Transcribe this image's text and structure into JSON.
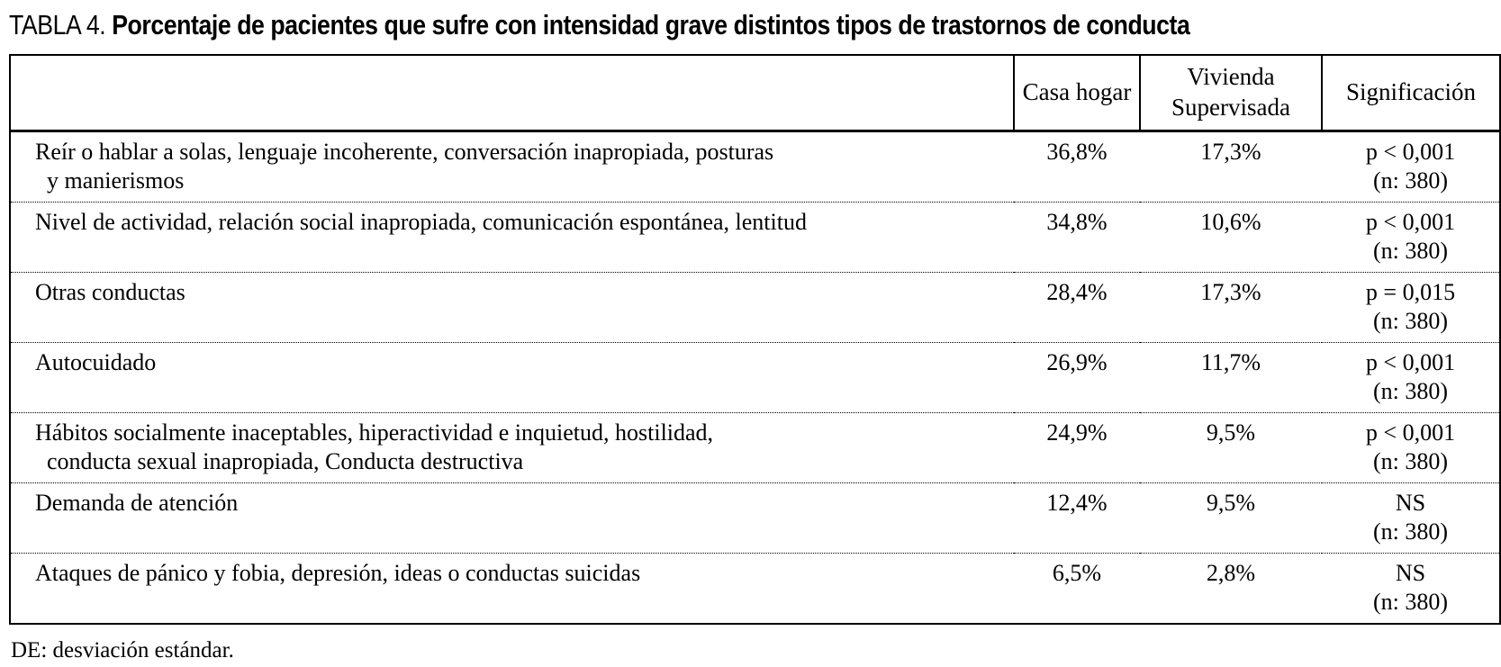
{
  "title": {
    "prefix": "TABLA 4.",
    "text": "Porcentaje de pacientes que sufre con intensidad grave distintos tipos de trastornos de conducta"
  },
  "table": {
    "header": {
      "col1": "Casa hogar",
      "col2": "Vivienda Supervisada",
      "col3": "Significación"
    },
    "rows": [
      {
        "label": "Reír o hablar a solas, lenguaje incoherente, conversación inapropiada, posturas\ny manierismos",
        "casa_hogar": "36,8%",
        "vivienda_supervisada": "17,3%",
        "significacion": "p < 0,001",
        "n": "(n: 380)"
      },
      {
        "label": "Nivel de actividad, relación social inapropiada, comunicación espontánea, lentitud",
        "casa_hogar": "34,8%",
        "vivienda_supervisada": "10,6%",
        "significacion": "p < 0,001",
        "n": "(n: 380)"
      },
      {
        "label": "Otras conductas",
        "casa_hogar": "28,4%",
        "vivienda_supervisada": "17,3%",
        "significacion": "p = 0,015",
        "n": "(n: 380)"
      },
      {
        "label": "Autocuidado",
        "casa_hogar": "26,9%",
        "vivienda_supervisada": "11,7%",
        "significacion": "p < 0,001",
        "n": "(n: 380)"
      },
      {
        "label": "Hábitos socialmente inaceptables, hiperactividad e inquietud, hostilidad,\nconducta sexual inapropiada, Conducta destructiva",
        "casa_hogar": "24,9%",
        "vivienda_supervisada": "9,5%",
        "significacion": "p < 0,001",
        "n": "(n: 380)"
      },
      {
        "label": "Demanda de atención",
        "casa_hogar": "12,4%",
        "vivienda_supervisada": "9,5%",
        "significacion": "NS",
        "n": "(n: 380)"
      },
      {
        "label": "Ataques de pánico y fobia, depresión, ideas o conductas suicidas",
        "casa_hogar": "6,5%",
        "vivienda_supervisada": "2,8%",
        "significacion": "NS",
        "n": "(n: 380)"
      }
    ]
  },
  "footnote": "DE: desviación estándar.",
  "colors": {
    "text": "#000000",
    "background": "#ffffff",
    "border": "#000000"
  }
}
